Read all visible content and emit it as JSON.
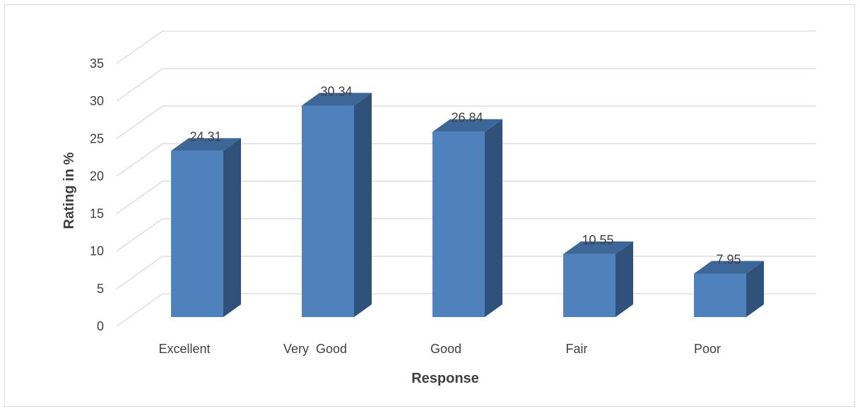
{
  "chart_data": {
    "type": "bar",
    "style": "3d-column",
    "title": "",
    "categories": [
      "Excellent",
      "Very  Good",
      "Good",
      "Fair",
      "Poor"
    ],
    "values": [
      24.31,
      30.34,
      26.84,
      10.55,
      7.95
    ],
    "data_labels": [
      "24.31",
      "30.34",
      "26.84",
      "10.55",
      "7.95"
    ],
    "xlabel": "Response",
    "ylabel": "Rating in %",
    "ylim": [
      0,
      35
    ],
    "yticks": [
      0,
      5,
      10,
      15,
      20,
      25,
      30,
      35
    ],
    "ytick_labels": [
      "0",
      "5",
      "10",
      "15",
      "20",
      "25",
      "30",
      "35"
    ],
    "grid": true,
    "legend": "none",
    "colors": {
      "bar_front": "#4f81bd",
      "bar_top": "#3d6699",
      "bar_side": "#30527a",
      "gridline": "#d9d9d9",
      "text": "#404040"
    }
  }
}
